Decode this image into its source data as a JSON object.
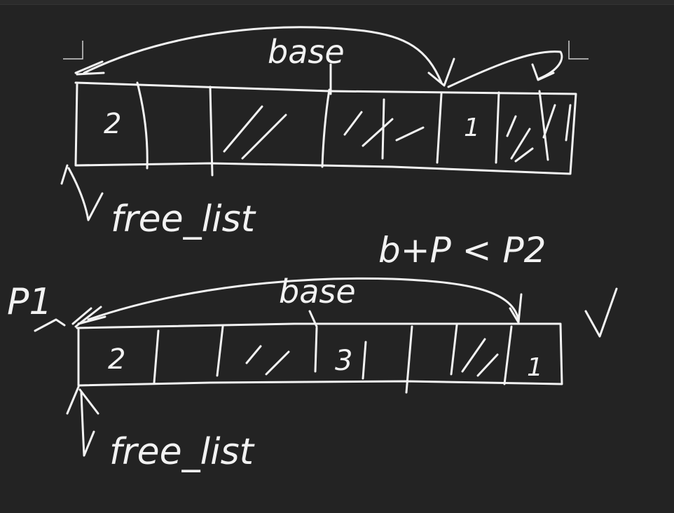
{
  "canvas": {
    "background": "#232323",
    "ink_color": "#f2f2f2"
  },
  "top_diagram": {
    "base_label": "base",
    "pointer_label": "free_list",
    "cells": [
      "2",
      "",
      "",
      "",
      "",
      "1",
      ""
    ]
  },
  "bottom_diagram": {
    "base_label": "base",
    "pointer_label": "free_list",
    "p1_label": "P1",
    "condition_label": "b+P < P2",
    "cells": [
      "2",
      "",
      "",
      "3",
      "",
      "",
      "1"
    ]
  }
}
